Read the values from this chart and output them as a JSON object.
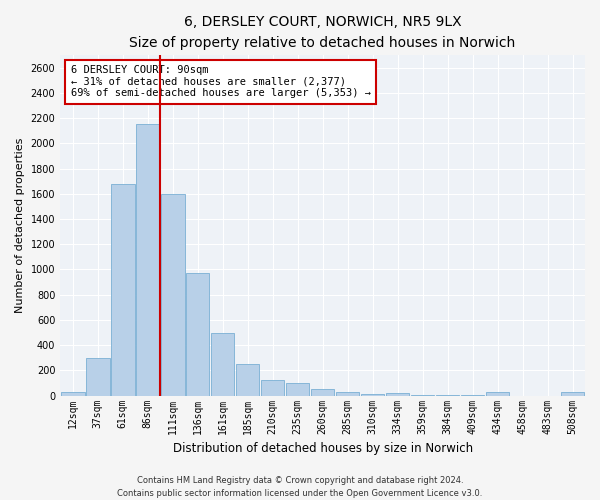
{
  "title_line1": "6, DERSLEY COURT, NORWICH, NR5 9LX",
  "title_line2": "Size of property relative to detached houses in Norwich",
  "xlabel": "Distribution of detached houses by size in Norwich",
  "ylabel": "Number of detached properties",
  "categories": [
    "12sqm",
    "37sqm",
    "61sqm",
    "86sqm",
    "111sqm",
    "136sqm",
    "161sqm",
    "185sqm",
    "210sqm",
    "235sqm",
    "260sqm",
    "285sqm",
    "310sqm",
    "334sqm",
    "359sqm",
    "384sqm",
    "409sqm",
    "434sqm",
    "458sqm",
    "483sqm",
    "508sqm"
  ],
  "values": [
    25,
    300,
    1680,
    2155,
    1600,
    970,
    500,
    248,
    125,
    100,
    50,
    30,
    15,
    20,
    5,
    5,
    5,
    25,
    0,
    0,
    25
  ],
  "bar_color": "#b8d0e8",
  "bar_edge_color": "#7aafd4",
  "vline_color": "#cc0000",
  "ylim": [
    0,
    2700
  ],
  "yticks": [
    0,
    200,
    400,
    600,
    800,
    1000,
    1200,
    1400,
    1600,
    1800,
    2000,
    2200,
    2400,
    2600
  ],
  "annotation_text": "6 DERSLEY COURT: 90sqm\n← 31% of detached houses are smaller (2,377)\n69% of semi-detached houses are larger (5,353) →",
  "annotation_box_color": "#ffffff",
  "annotation_box_edge": "#cc0000",
  "footer_line1": "Contains HM Land Registry data © Crown copyright and database right 2024.",
  "footer_line2": "Contains public sector information licensed under the Open Government Licence v3.0.",
  "background_color": "#eef2f7",
  "grid_color": "#ffffff",
  "fig_bg_color": "#f5f5f5",
  "title_fontsize": 10,
  "subtitle_fontsize": 9,
  "tick_fontsize": 7,
  "ylabel_fontsize": 8,
  "xlabel_fontsize": 8.5,
  "footer_fontsize": 6,
  "ann_fontsize": 7.5
}
